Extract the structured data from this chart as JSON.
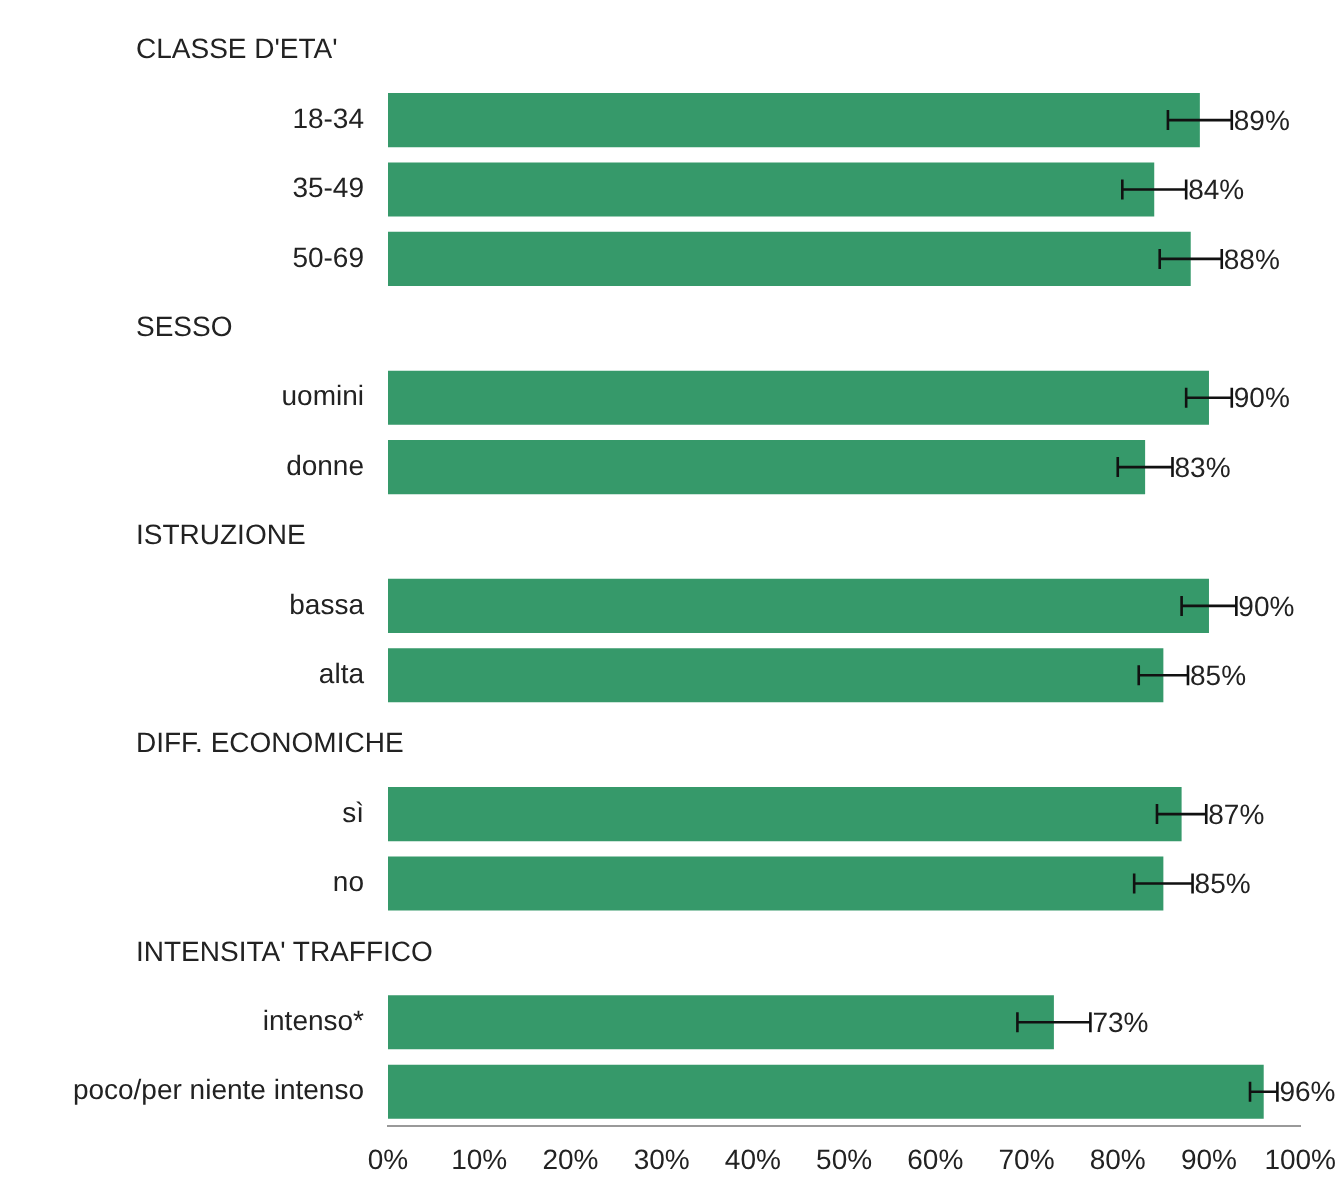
{
  "chart_data": {
    "type": "bar",
    "orientation": "horizontal",
    "categories": [
      null,
      "18-34",
      "35-49",
      "50-69",
      null,
      "uomini",
      "donne",
      null,
      "bassa",
      "alta",
      null,
      "sì",
      "no",
      null,
      "intenso*",
      "poco/per niente intenso"
    ],
    "annotations": [
      "CLASSE D'ETA'",
      "SESSO",
      "ISTRUZIONE",
      "DIFF. ECONOMICHE",
      "INTENSITA' TRAFFICO"
    ],
    "values": [
      null,
      89,
      84,
      88,
      null,
      90,
      83,
      null,
      90,
      85,
      null,
      87,
      85,
      null,
      73,
      96
    ],
    "errors": [
      null,
      3.5,
      3.5,
      3.4,
      null,
      2.5,
      3,
      null,
      3,
      2.7,
      null,
      2.7,
      3.2,
      null,
      4,
      1.5
    ],
    "value_labels": [
      null,
      "89%",
      "84%",
      "88%",
      null,
      "90%",
      "83%",
      null,
      "90%",
      "85%",
      null,
      "87%",
      "85%",
      null,
      "73%",
      "96%"
    ],
    "color": "#36996a",
    "xlim": [
      0,
      100
    ],
    "xticks": [
      {
        "value": 0,
        "label": "0%"
      },
      {
        "value": 10,
        "label": "10%"
      },
      {
        "value": 20,
        "label": "20%"
      },
      {
        "value": 30,
        "label": "30%"
      },
      {
        "value": 40,
        "label": "40%"
      },
      {
        "value": 50,
        "label": "50%"
      },
      {
        "value": 60,
        "label": "60%"
      },
      {
        "value": 70,
        "label": "70%"
      },
      {
        "value": 80,
        "label": "80%"
      },
      {
        "value": 90,
        "label": "90%"
      },
      {
        "value": 100,
        "label": "100%"
      }
    ],
    "grid": false,
    "legend": false
  }
}
